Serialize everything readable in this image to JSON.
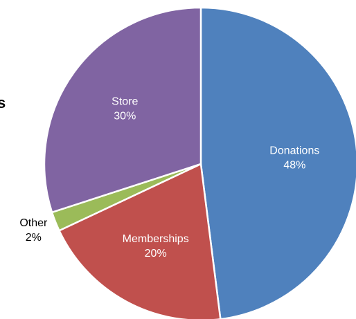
{
  "chart_data": {
    "type": "pie",
    "title": "s",
    "categories": [
      "Donations",
      "Memberships",
      "Other",
      "Store"
    ],
    "values": [
      48,
      20,
      2,
      30
    ],
    "value_labels": [
      "48%",
      "20%",
      "2%",
      "30%"
    ],
    "colors": [
      "#4f81bd",
      "#c0504d",
      "#9bbb59",
      "#8064a2"
    ]
  }
}
